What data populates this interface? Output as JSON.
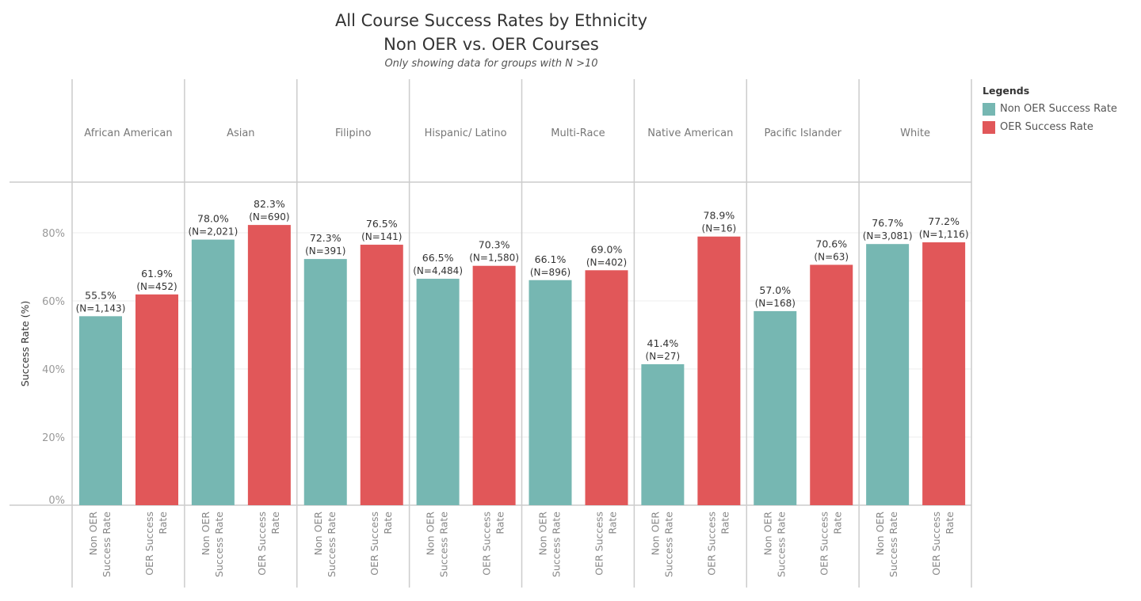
{
  "chart_data": {
    "type": "bar",
    "title": "All Course Success Rates by Ethnicity",
    "subtitle": "Non OER vs. OER Courses",
    "note": "Only showing data for groups with N >10",
    "xlabel": "",
    "ylabel": "Success Rate (%)",
    "ylim": [
      0,
      94
    ],
    "yticks": [
      0,
      20,
      40,
      60,
      80
    ],
    "ytick_labels": [
      "0%",
      "20%",
      "40%",
      "60%",
      "80%"
    ],
    "grid": true,
    "legend_title": "Legends",
    "legend_position": "right",
    "categories": [
      "African American",
      "Asian",
      "Filipino",
      "Hispanic/ Latino",
      "Multi-Race",
      "Native American",
      "Pacific Islander",
      "White"
    ],
    "sub_categories": [
      {
        "line1": "Non OER",
        "line2": "Success Rate"
      },
      {
        "line1": "OER Success",
        "line2": "Rate"
      }
    ],
    "series": [
      {
        "name": "Non OER Success Rate",
        "color": "#76b7b2",
        "values": [
          55.5,
          78.0,
          72.3,
          66.5,
          66.1,
          41.4,
          57.0,
          76.7
        ],
        "labels": [
          "55.5%",
          "78.0%",
          "72.3%",
          "66.5%",
          "66.1%",
          "41.4%",
          "57.0%",
          "76.7%"
        ],
        "n_labels": [
          "(N=1,143)",
          "(N=2,021)",
          "(N=391)",
          "(N=4,484)",
          "(N=896)",
          "(N=27)",
          "(N=168)",
          "(N=3,081)"
        ]
      },
      {
        "name": "OER Success Rate",
        "color": "#e15759",
        "values": [
          61.9,
          82.3,
          76.5,
          70.3,
          69.0,
          78.9,
          70.6,
          77.2
        ],
        "labels": [
          "61.9%",
          "82.3%",
          "76.5%",
          "70.3%",
          "69.0%",
          "78.9%",
          "70.6%",
          "77.2%"
        ],
        "n_labels": [
          "(N=452)",
          "(N=690)",
          "(N=141)",
          "(N=1,580)",
          "(N=402)",
          "(N=16)",
          "(N=63)",
          "(N=1,116)"
        ]
      }
    ]
  }
}
